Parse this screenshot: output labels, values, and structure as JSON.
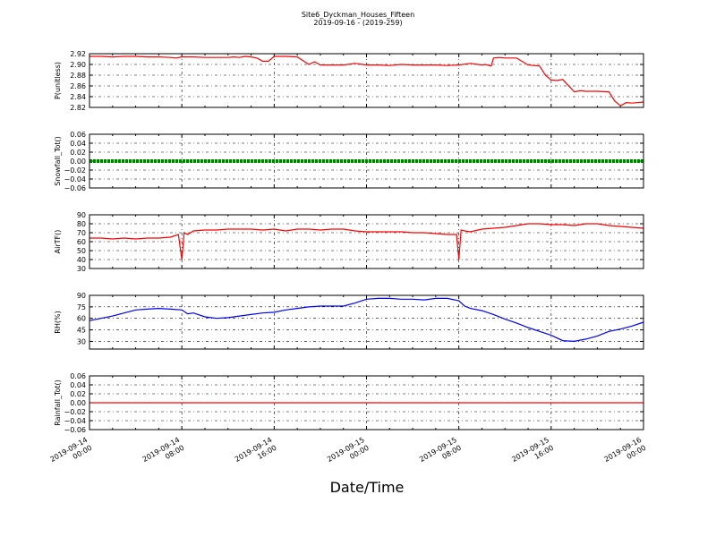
{
  "title_line1": "Site6_Dyckman_Houses_Fifteen",
  "title_line2": "2019-09-16 - (2019-259)",
  "xlabel": "Date/Time",
  "x_tick_labels": [
    [
      "2019-09-14",
      "00:00"
    ],
    [
      "2019-09-14",
      "08:00"
    ],
    [
      "2019-09-14",
      "16:00"
    ],
    [
      "2019-09-15",
      "00:00"
    ],
    [
      "2019-09-15",
      "08:00"
    ],
    [
      "2019-09-15",
      "16:00"
    ],
    [
      "2019-09-16",
      "00:00"
    ]
  ],
  "chart_data": [
    {
      "type": "line",
      "ylabel": "P(unitless)",
      "ylim": [
        2.82,
        2.92
      ],
      "yticks": [
        "2.82",
        "2.84",
        "2.86",
        "2.88",
        "2.90",
        "2.92"
      ],
      "xlim_hours": [
        0,
        48
      ],
      "grid": true,
      "series": [
        {
          "color": "#ff0000",
          "x": [
            0,
            1,
            2,
            3,
            4,
            5,
            6,
            7,
            7.5,
            8,
            9,
            10,
            11,
            12,
            12.5,
            13,
            13.5,
            14,
            14.5,
            15,
            15.5,
            16,
            17,
            18,
            19,
            19.5,
            20,
            21,
            22,
            23,
            24,
            25,
            26,
            27,
            28,
            29,
            30,
            31,
            32,
            33,
            34,
            34.3,
            34.8,
            35,
            35.5,
            36,
            37,
            38,
            39,
            39.5,
            40,
            40.5,
            41,
            42,
            42.5,
            43,
            44,
            45,
            45.5,
            46,
            46.5,
            47,
            48
          ],
          "y": [
            2.915,
            2.915,
            2.914,
            2.915,
            2.915,
            2.914,
            2.914,
            2.913,
            2.912,
            2.914,
            2.914,
            2.913,
            2.913,
            2.913,
            2.914,
            2.913,
            2.915,
            2.914,
            2.912,
            2.906,
            2.906,
            2.915,
            2.915,
            2.914,
            2.9,
            2.905,
            2.899,
            2.899,
            2.899,
            2.902,
            2.899,
            2.899,
            2.898,
            2.9,
            2.899,
            2.899,
            2.899,
            2.898,
            2.899,
            2.902,
            2.899,
            2.9,
            2.897,
            2.912,
            2.913,
            2.912,
            2.912,
            2.899,
            2.897,
            2.88,
            2.871,
            2.87,
            2.872,
            2.849,
            2.851,
            2.85,
            2.85,
            2.849,
            2.832,
            2.823,
            2.829,
            2.828,
            2.83
          ]
        }
      ]
    },
    {
      "type": "line",
      "ylabel": "Snowfall_Tot()",
      "ylim": [
        -0.06,
        0.06
      ],
      "yticks": [
        "−0.06",
        "−0.04",
        "−0.02",
        "0.00",
        "0.02",
        "0.04",
        "0.06"
      ],
      "xlim_hours": [
        0,
        48
      ],
      "grid": true,
      "series": [
        {
          "color": "#008000",
          "x": [
            0,
            48
          ],
          "y": [
            0,
            0
          ]
        }
      ]
    },
    {
      "type": "line",
      "ylabel": "AirTF()",
      "ylim": [
        30,
        90
      ],
      "yticks": [
        "30",
        "40",
        "50",
        "60",
        "70",
        "80",
        "90"
      ],
      "xlim_hours": [
        0,
        48
      ],
      "grid": true,
      "series": [
        {
          "color": "#ff0000",
          "x": [
            0,
            1,
            2,
            3,
            4,
            5,
            6,
            7,
            7.7,
            8,
            8.2,
            8.5,
            9,
            10,
            11,
            12,
            13,
            14,
            15,
            16,
            17,
            18,
            19,
            20,
            21,
            22,
            23,
            24,
            25,
            26,
            27,
            28,
            29,
            30,
            31,
            31.8,
            32,
            32.2,
            32.5,
            33,
            34,
            35,
            36,
            37,
            38,
            39,
            40,
            41,
            42,
            43,
            44,
            45,
            46,
            47,
            48
          ],
          "y": [
            64,
            64,
            63,
            64,
            63,
            64,
            64,
            65,
            68,
            40,
            70,
            68,
            72,
            73,
            73,
            74,
            74,
            74,
            73,
            74,
            72,
            74,
            74,
            73,
            74,
            74,
            72,
            71,
            71,
            71,
            71,
            70,
            70,
            69,
            68,
            68,
            40,
            73,
            72,
            71,
            74,
            75,
            76,
            78,
            80,
            80,
            79,
            79,
            78,
            80,
            80,
            78,
            77,
            76,
            75
          ]
        }
      ]
    },
    {
      "type": "line",
      "ylabel": "RH(%)",
      "ylim": [
        20,
        90
      ],
      "yticks": [
        "30",
        "45",
        "60",
        "75",
        "90"
      ],
      "xlim_hours": [
        0,
        48
      ],
      "grid": true,
      "series": [
        {
          "color": "#0000ff",
          "x": [
            0,
            1,
            2,
            3,
            4,
            5,
            6,
            7,
            8,
            8.5,
            9,
            10,
            11,
            12,
            13,
            14,
            15,
            16,
            17,
            18,
            19,
            20,
            21,
            22,
            23,
            24,
            25,
            26,
            27,
            28,
            29,
            30,
            31,
            32,
            32.5,
            33,
            34,
            35,
            36,
            37,
            38,
            39,
            40,
            41,
            42,
            43,
            44,
            45,
            46,
            47,
            48
          ],
          "y": [
            57,
            60,
            63,
            67,
            71,
            72,
            73,
            72,
            71,
            66,
            67,
            62,
            60,
            61,
            63,
            65,
            67,
            68,
            71,
            73,
            75,
            76,
            76,
            76,
            80,
            85,
            86,
            86,
            85,
            85,
            84,
            86,
            86,
            83,
            76,
            73,
            70,
            65,
            59,
            54,
            48,
            43,
            38,
            31,
            30,
            33,
            37,
            43,
            46,
            50,
            55
          ]
        }
      ]
    },
    {
      "type": "line",
      "ylabel": "Rainfall_Tot()",
      "ylim": [
        -0.06,
        0.06
      ],
      "yticks": [
        "−0.06",
        "−0.04",
        "−0.02",
        "0.00",
        "0.02",
        "0.04",
        "0.06"
      ],
      "xlim_hours": [
        0,
        48
      ],
      "grid": true,
      "series": [
        {
          "color": "#ff0000",
          "x": [
            0,
            48
          ],
          "y": [
            0,
            0
          ]
        }
      ]
    }
  ]
}
